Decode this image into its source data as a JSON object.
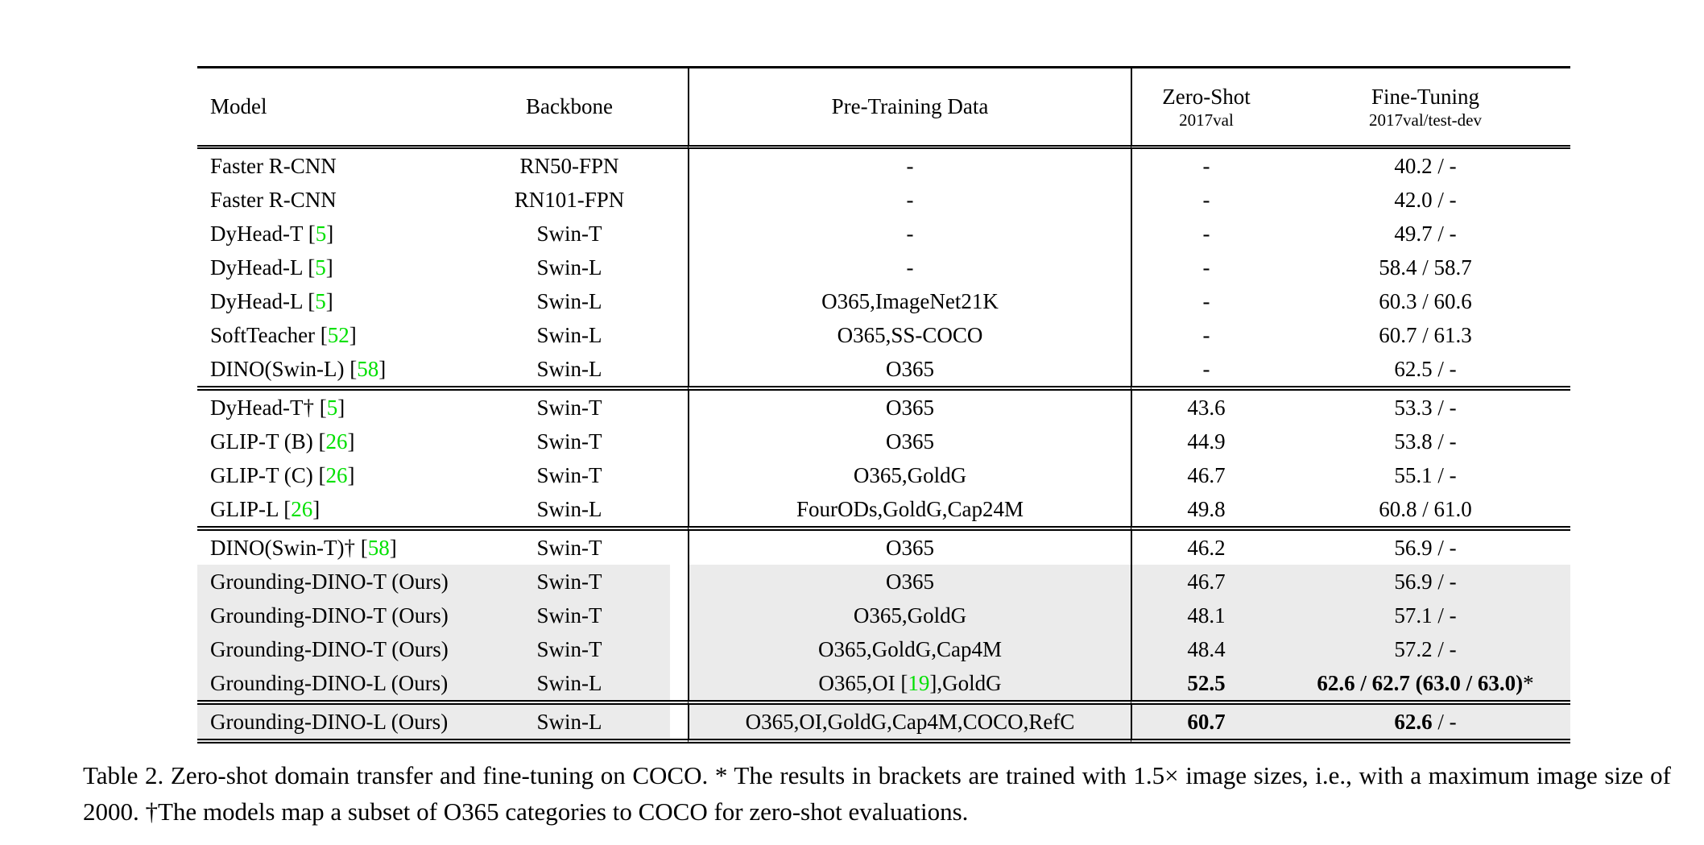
{
  "table": {
    "colors": {
      "citation_green": "#00e000",
      "highlight_gray": "#ebebeb"
    },
    "header": {
      "model": "Model",
      "backbone": "Backbone",
      "pretrain": "Pre-Training Data",
      "zeroshot_main": "Zero-Shot",
      "zeroshot_sub": "2017val",
      "finetune_main": "Fine-Tuning",
      "finetune_sub": "2017val/test-dev"
    },
    "sections": [
      {
        "rows": [
          {
            "model": "Faster R-CNN",
            "backbone": "RN50-FPN",
            "pretrain": "-",
            "zeroshot": {
              "text": "-"
            },
            "finetune": {
              "text": "40.2 / -"
            },
            "highlight": false
          },
          {
            "model": "Faster R-CNN",
            "backbone": "RN101-FPN",
            "pretrain": "-",
            "zeroshot": {
              "text": "-"
            },
            "finetune": {
              "text": "42.0 / -"
            },
            "highlight": false
          },
          {
            "model": "DyHead-T [[5]]",
            "backbone": "Swin-T",
            "pretrain": "-",
            "zeroshot": {
              "text": "-"
            },
            "finetune": {
              "text": "49.7 / -"
            },
            "highlight": false
          },
          {
            "model": "DyHead-L [[5]]",
            "backbone": "Swin-L",
            "pretrain": "-",
            "zeroshot": {
              "text": "-"
            },
            "finetune": {
              "text": "58.4 / 58.7"
            },
            "highlight": false
          },
          {
            "model": "DyHead-L [[5]]",
            "backbone": "Swin-L",
            "pretrain": "O365,ImageNet21K",
            "zeroshot": {
              "text": "-"
            },
            "finetune": {
              "text": "60.3 / 60.6"
            },
            "highlight": false
          },
          {
            "model": "SoftTeacher [[52]]",
            "backbone": "Swin-L",
            "pretrain": "O365,SS-COCO",
            "zeroshot": {
              "text": "-"
            },
            "finetune": {
              "text": "60.7 / 61.3"
            },
            "highlight": false
          },
          {
            "model": "DINO(Swin-L) [[58]]",
            "backbone": "Swin-L",
            "pretrain": "O365",
            "zeroshot": {
              "text": "-"
            },
            "finetune": {
              "text": "62.5 / -"
            },
            "highlight": false
          }
        ]
      },
      {
        "rows": [
          {
            "model": "DyHead-T† [[5]]",
            "backbone": "Swin-T",
            "pretrain": "O365",
            "zeroshot": {
              "text": "43.6"
            },
            "finetune": {
              "text": "53.3 / -"
            },
            "highlight": false
          },
          {
            "model": "GLIP-T (B) [[26]]",
            "backbone": "Swin-T",
            "pretrain": "O365",
            "zeroshot": {
              "text": "44.9"
            },
            "finetune": {
              "text": "53.8 / -"
            },
            "highlight": false
          },
          {
            "model": "GLIP-T (C) [[26]]",
            "backbone": "Swin-T",
            "pretrain": "O365,GoldG",
            "zeroshot": {
              "text": "46.7"
            },
            "finetune": {
              "text": "55.1 / -"
            },
            "highlight": false
          },
          {
            "model": "GLIP-L [[26]]",
            "backbone": "Swin-L",
            "pretrain": "FourODs,GoldG,Cap24M",
            "zeroshot": {
              "text": "49.8"
            },
            "finetune": {
              "text": "60.8 / 61.0"
            },
            "highlight": false
          }
        ]
      },
      {
        "rows": [
          {
            "model": "DINO(Swin-T)† [[58]]",
            "backbone": "Swin-T",
            "pretrain": "O365",
            "zeroshot": {
              "text": "46.2"
            },
            "finetune": {
              "text": "56.9 / -"
            },
            "highlight": false
          },
          {
            "model": "Grounding-DINO-T (Ours)",
            "backbone": "Swin-T",
            "pretrain": "O365",
            "zeroshot": {
              "text": "46.7"
            },
            "finetune": {
              "text": "56.9 / -"
            },
            "highlight": true
          },
          {
            "model": "Grounding-DINO-T (Ours)",
            "backbone": "Swin-T",
            "pretrain": "O365,GoldG",
            "zeroshot": {
              "text": "48.1"
            },
            "finetune": {
              "text": "57.1 / -"
            },
            "highlight": true
          },
          {
            "model": "Grounding-DINO-T (Ours)",
            "backbone": "Swin-T",
            "pretrain": "O365,GoldG,Cap4M",
            "zeroshot": {
              "text": "48.4"
            },
            "finetune": {
              "text": "57.2 / -"
            },
            "highlight": true
          },
          {
            "model": "Grounding-DINO-L (Ours)",
            "backbone": "Swin-L",
            "pretrain": "O365,OI [[19]],GoldG",
            "zeroshot": {
              "bold": "52.5"
            },
            "finetune": {
              "bold": "62.6 / 62.7 (63.0 / 63.0)",
              "text": "*"
            },
            "highlight": true
          }
        ]
      },
      {
        "rows": [
          {
            "model": "Grounding-DINO-L (Ours)",
            "backbone": "Swin-L",
            "pretrain": "O365,OI,GoldG,Cap4M,COCO,RefC",
            "zeroshot": {
              "bold": "60.7"
            },
            "finetune": {
              "bold": "62.6",
              "text": " / -"
            },
            "highlight": true
          }
        ]
      }
    ]
  },
  "caption": {
    "text": "Table 2.  Zero-shot domain transfer and fine-tuning on COCO. * The results in brackets are trained with 1.5× image sizes, i.e., with a maximum image size of 2000. †The models map a subset of O365 categories to COCO for zero-shot evaluations."
  }
}
